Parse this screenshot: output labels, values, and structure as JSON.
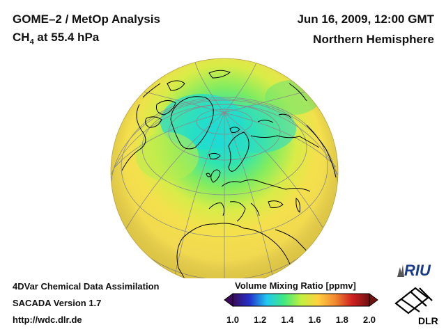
{
  "header": {
    "title_line1": "GOME–2 / MetOp Analysis",
    "species_main": "CH",
    "species_sub": "4",
    "species_rest": " at 55.4 hPa",
    "date": "Jun 16, 2009, 12:00 GMT",
    "region": "Northern Hemisphere"
  },
  "footer": {
    "line1": "4DVar Chemical Data Assimilation",
    "line2": "SACADA Version 1.7",
    "line3": "http://wdc.dlr.de"
  },
  "colorbar": {
    "title": "Volume Mixing Ratio [ppmv]",
    "ticks": [
      "1.0",
      "1.2",
      "1.4",
      "1.6",
      "1.8",
      "2.0"
    ],
    "colors": [
      "#3a0a5a",
      "#2233cc",
      "#22c8f0",
      "#40e880",
      "#c0f040",
      "#ffd040",
      "#f08a30",
      "#d02020",
      "#701010"
    ]
  },
  "logos": {
    "riu": "RIU",
    "dlr": "DLR"
  },
  "map_colors": {
    "polar_low": "#20e0d8",
    "mid": "#60e070",
    "high": "#f2e04a",
    "land_outline": "#000000",
    "grid": "#909090"
  }
}
